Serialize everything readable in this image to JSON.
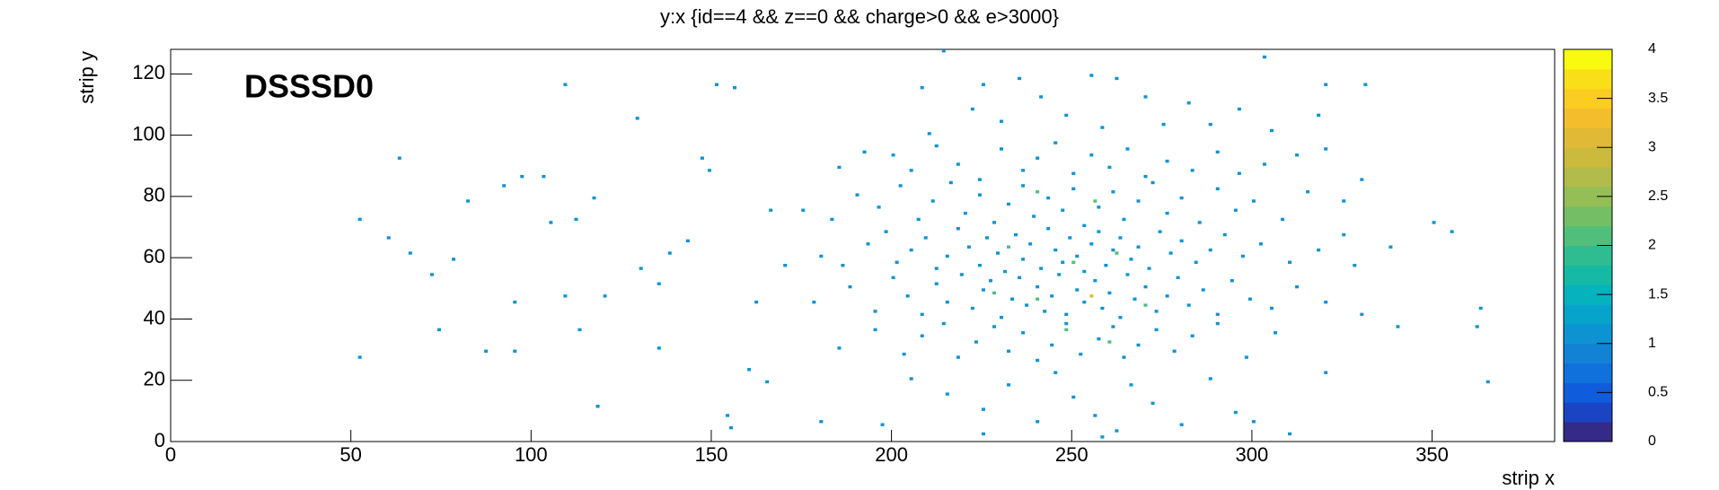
{
  "chart_data": {
    "type": "histogram2d",
    "title": "y:x {id==4 && z==0 && charge>0 && e>3000}",
    "x_label": "strip x",
    "y_label": "strip y",
    "annotation": "DSSSD0",
    "xlim": [
      0,
      384
    ],
    "ylim": [
      0,
      128
    ],
    "zlim": [
      0,
      4
    ],
    "xticks": [
      0,
      50,
      100,
      150,
      200,
      250,
      300,
      350
    ],
    "yticks": [
      0,
      20,
      40,
      60,
      80,
      100,
      120
    ],
    "zticks": [
      0,
      0.5,
      1,
      1.5,
      2,
      2.5,
      3,
      3.5,
      4
    ],
    "palette": [
      "#352a87",
      "#1a44c4",
      "#0f5cdd",
      "#1070dc",
      "#1283d4",
      "#0d93d2",
      "#06a4ca",
      "#05b3bf",
      "#15b9a4",
      "#2fbc91",
      "#50bf7c",
      "#74bf66",
      "#95be56",
      "#b2bc4a",
      "#cbba3c",
      "#e0b936",
      "#f3bd2c",
      "#fbcc22",
      "#f9df18",
      "#f9fb0e"
    ],
    "cells": [
      [
        52,
        72,
        1
      ],
      [
        52,
        27,
        1
      ],
      [
        63,
        92,
        1
      ],
      [
        60,
        66,
        1
      ],
      [
        66,
        61,
        1
      ],
      [
        72,
        54,
        1
      ],
      [
        74,
        36,
        1
      ],
      [
        78,
        59,
        1
      ],
      [
        82,
        78,
        1
      ],
      [
        87,
        29,
        1
      ],
      [
        92,
        83,
        1
      ],
      [
        95,
        29,
        1
      ],
      [
        95,
        45,
        1
      ],
      [
        97,
        86,
        1
      ],
      [
        103,
        86,
        1
      ],
      [
        109,
        47,
        1
      ],
      [
        109,
        116,
        1
      ],
      [
        105,
        71,
        1
      ],
      [
        112,
        72,
        1
      ],
      [
        113,
        36,
        1
      ],
      [
        117,
        79,
        1
      ],
      [
        118,
        11,
        1
      ],
      [
        120,
        47,
        1
      ],
      [
        129,
        105,
        1
      ],
      [
        130,
        56,
        1
      ],
      [
        135,
        30,
        1
      ],
      [
        135,
        51,
        1
      ],
      [
        138,
        61,
        1
      ],
      [
        143,
        65,
        1
      ],
      [
        147,
        92,
        1
      ],
      [
        149,
        88,
        1
      ],
      [
        151,
        116,
        1
      ],
      [
        154,
        8,
        1
      ],
      [
        155,
        4,
        1
      ],
      [
        156,
        115,
        1
      ],
      [
        165,
        19,
        1
      ],
      [
        160,
        23,
        1
      ],
      [
        162,
        45,
        1
      ],
      [
        166,
        75,
        1
      ],
      [
        180,
        6,
        1
      ],
      [
        197,
        5,
        1
      ],
      [
        340,
        37,
        1
      ],
      [
        350,
        71,
        1
      ],
      [
        355,
        68,
        1
      ],
      [
        362,
        37,
        1
      ],
      [
        363,
        43,
        1
      ],
      [
        365,
        19,
        1
      ],
      [
        325,
        67,
        1
      ],
      [
        331,
        116,
        1
      ],
      [
        320,
        116,
        1
      ],
      [
        303,
        125,
        1
      ],
      [
        214,
        127,
        1
      ],
      [
        208,
        115,
        1
      ],
      [
        222,
        108,
        1
      ],
      [
        235,
        118,
        1
      ],
      [
        241,
        112,
        1
      ],
      [
        248,
        106,
        1
      ],
      [
        255,
        119,
        1
      ],
      [
        262,
        118,
        1
      ],
      [
        270,
        112,
        1
      ],
      [
        275,
        103,
        1
      ],
      [
        282,
        110,
        1
      ],
      [
        296,
        108,
        1
      ],
      [
        305,
        101,
        1
      ],
      [
        210,
        100,
        1
      ],
      [
        230,
        104,
        1
      ],
      [
        258,
        102,
        1
      ],
      [
        288,
        103,
        1
      ],
      [
        318,
        106,
        1
      ],
      [
        225,
        116,
        1
      ],
      [
        200,
        93,
        1
      ],
      [
        205,
        88,
        1
      ],
      [
        212,
        96,
        1
      ],
      [
        218,
        90,
        1
      ],
      [
        224,
        85,
        1
      ],
      [
        230,
        95,
        1
      ],
      [
        236,
        88,
        1
      ],
      [
        240,
        92,
        1
      ],
      [
        245,
        97,
        1
      ],
      [
        250,
        87,
        1
      ],
      [
        255,
        93,
        1
      ],
      [
        260,
        89,
        1
      ],
      [
        265,
        95,
        1
      ],
      [
        270,
        86,
        1
      ],
      [
        276,
        91,
        1
      ],
      [
        283,
        88,
        1
      ],
      [
        290,
        94,
        1
      ],
      [
        296,
        87,
        1
      ],
      [
        303,
        90,
        1
      ],
      [
        312,
        93,
        1
      ],
      [
        320,
        95,
        1
      ],
      [
        330,
        85,
        1
      ],
      [
        185,
        89,
        1
      ],
      [
        192,
        94,
        1
      ],
      [
        190,
        80,
        1
      ],
      [
        196,
        76,
        1
      ],
      [
        202,
        83,
        1
      ],
      [
        207,
        72,
        1
      ],
      [
        211,
        78,
        1
      ],
      [
        216,
        84,
        1
      ],
      [
        220,
        74,
        1
      ],
      [
        224,
        80,
        1
      ],
      [
        228,
        71,
        1
      ],
      [
        232,
        77,
        1
      ],
      [
        236,
        83,
        1
      ],
      [
        239,
        73,
        1
      ],
      [
        243,
        79,
        1
      ],
      [
        247,
        75,
        1
      ],
      [
        250,
        82,
        1
      ],
      [
        253,
        70,
        1
      ],
      [
        257,
        76,
        1
      ],
      [
        261,
        81,
        1
      ],
      [
        264,
        72,
        1
      ],
      [
        268,
        78,
        1
      ],
      [
        272,
        84,
        1
      ],
      [
        276,
        74,
        1
      ],
      [
        280,
        79,
        1
      ],
      [
        285,
        71,
        1
      ],
      [
        290,
        82,
        1
      ],
      [
        295,
        75,
        1
      ],
      [
        300,
        78,
        1
      ],
      [
        308,
        72,
        1
      ],
      [
        315,
        81,
        1
      ],
      [
        325,
        78,
        1
      ],
      [
        175,
        75,
        1
      ],
      [
        183,
        72,
        1
      ],
      [
        240,
        81,
        2
      ],
      [
        256,
        78,
        2
      ],
      [
        180,
        60,
        1
      ],
      [
        186,
        57,
        1
      ],
      [
        193,
        64,
        1
      ],
      [
        198,
        68,
        1
      ],
      [
        201,
        58,
        1
      ],
      [
        205,
        62,
        1
      ],
      [
        209,
        66,
        1
      ],
      [
        212,
        56,
        1
      ],
      [
        215,
        60,
        1
      ],
      [
        218,
        69,
        1
      ],
      [
        221,
        63,
        1
      ],
      [
        224,
        57,
        1
      ],
      [
        226,
        66,
        1
      ],
      [
        229,
        61,
        1
      ],
      [
        231,
        55,
        1
      ],
      [
        234,
        67,
        1
      ],
      [
        236,
        59,
        1
      ],
      [
        238,
        64,
        1
      ],
      [
        241,
        56,
        1
      ],
      [
        243,
        69,
        1
      ],
      [
        245,
        62,
        1
      ],
      [
        247,
        58,
        1
      ],
      [
        249,
        66,
        1
      ],
      [
        251,
        60,
        1
      ],
      [
        253,
        55,
        1
      ],
      [
        255,
        64,
        1
      ],
      [
        257,
        68,
        1
      ],
      [
        259,
        57,
        1
      ],
      [
        261,
        62,
        1
      ],
      [
        263,
        66,
        1
      ],
      [
        266,
        59,
        1
      ],
      [
        268,
        63,
        1
      ],
      [
        271,
        56,
        1
      ],
      [
        274,
        68,
        1
      ],
      [
        277,
        61,
        1
      ],
      [
        280,
        65,
        1
      ],
      [
        284,
        58,
        1
      ],
      [
        288,
        62,
        1
      ],
      [
        292,
        67,
        1
      ],
      [
        297,
        60,
        1
      ],
      [
        302,
        64,
        1
      ],
      [
        310,
        58,
        1
      ],
      [
        318,
        62,
        1
      ],
      [
        328,
        57,
        1
      ],
      [
        338,
        63,
        1
      ],
      [
        232,
        63,
        2
      ],
      [
        250,
        58,
        2
      ],
      [
        262,
        61,
        2
      ],
      [
        170,
        57,
        1
      ],
      [
        178,
        45,
        1
      ],
      [
        188,
        50,
        1
      ],
      [
        195,
        42,
        1
      ],
      [
        200,
        53,
        1
      ],
      [
        204,
        47,
        1
      ],
      [
        208,
        41,
        1
      ],
      [
        212,
        51,
        1
      ],
      [
        215,
        45,
        1
      ],
      [
        219,
        54,
        1
      ],
      [
        222,
        43,
        1
      ],
      [
        225,
        49,
        1
      ],
      [
        227,
        52,
        1
      ],
      [
        230,
        40,
        1
      ],
      [
        233,
        46,
        1
      ],
      [
        235,
        53,
        1
      ],
      [
        237,
        44,
        1
      ],
      [
        240,
        50,
        1
      ],
      [
        242,
        42,
        1
      ],
      [
        244,
        47,
        1
      ],
      [
        246,
        54,
        1
      ],
      [
        248,
        41,
        1
      ],
      [
        251,
        49,
        1
      ],
      [
        253,
        45,
        1
      ],
      [
        256,
        52,
        1
      ],
      [
        258,
        43,
        1
      ],
      [
        260,
        48,
        1
      ],
      [
        263,
        40,
        1
      ],
      [
        265,
        54,
        1
      ],
      [
        267,
        46,
        1
      ],
      [
        270,
        50,
        1
      ],
      [
        273,
        42,
        1
      ],
      [
        276,
        47,
        1
      ],
      [
        279,
        53,
        1
      ],
      [
        282,
        44,
        1
      ],
      [
        286,
        49,
        1
      ],
      [
        290,
        41,
        1
      ],
      [
        294,
        52,
        1
      ],
      [
        299,
        46,
        1
      ],
      [
        305,
        43,
        1
      ],
      [
        312,
        50,
        1
      ],
      [
        320,
        45,
        1
      ],
      [
        330,
        41,
        1
      ],
      [
        240,
        46,
        2
      ],
      [
        255,
        47,
        3
      ],
      [
        228,
        48,
        2
      ],
      [
        270,
        44,
        2
      ],
      [
        185,
        30,
        1
      ],
      [
        195,
        36,
        1
      ],
      [
        203,
        28,
        1
      ],
      [
        208,
        34,
        1
      ],
      [
        214,
        38,
        1
      ],
      [
        218,
        27,
        1
      ],
      [
        223,
        32,
        1
      ],
      [
        228,
        37,
        1
      ],
      [
        232,
        29,
        1
      ],
      [
        236,
        35,
        1
      ],
      [
        240,
        26,
        1
      ],
      [
        244,
        31,
        1
      ],
      [
        248,
        38,
        1
      ],
      [
        252,
        28,
        1
      ],
      [
        257,
        33,
        1
      ],
      [
        261,
        37,
        1
      ],
      [
        264,
        27,
        1
      ],
      [
        268,
        31,
        1
      ],
      [
        273,
        36,
        1
      ],
      [
        278,
        29,
        1
      ],
      [
        283,
        34,
        1
      ],
      [
        290,
        38,
        1
      ],
      [
        298,
        27,
        1
      ],
      [
        306,
        35,
        1
      ],
      [
        260,
        32,
        2
      ],
      [
        248,
        36,
        2
      ],
      [
        205,
        20,
        1
      ],
      [
        215,
        15,
        1
      ],
      [
        225,
        10,
        1
      ],
      [
        232,
        18,
        1
      ],
      [
        240,
        6,
        1
      ],
      [
        245,
        22,
        1
      ],
      [
        250,
        14,
        1
      ],
      [
        256,
        8,
        1
      ],
      [
        262,
        3,
        1
      ],
      [
        266,
        18,
        1
      ],
      [
        272,
        12,
        1
      ],
      [
        280,
        5,
        1
      ],
      [
        288,
        20,
        1
      ],
      [
        295,
        9,
        1
      ],
      [
        300,
        6,
        1
      ],
      [
        310,
        2,
        1
      ],
      [
        258,
        1,
        1
      ],
      [
        320,
        22,
        1
      ],
      [
        225,
        2,
        1
      ]
    ]
  }
}
